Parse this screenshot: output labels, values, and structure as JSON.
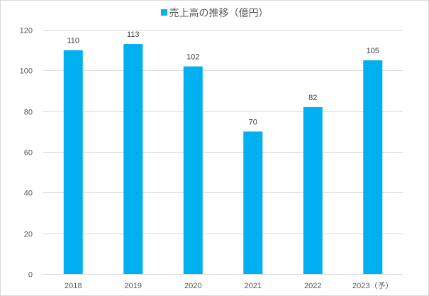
{
  "chart_data": {
    "type": "bar",
    "series": [
      {
        "name": "売上高の推移（億円）",
        "values": [
          110,
          113,
          102,
          70,
          82,
          105
        ]
      }
    ],
    "categories": [
      "2018",
      "2019",
      "2020",
      "2021",
      "2022",
      "2023（予）"
    ],
    "ylim": [
      0,
      120
    ],
    "yticks": [
      0,
      20,
      40,
      60,
      80,
      100,
      120
    ],
    "grid": true,
    "legend": "top",
    "data_labels": [
      "110",
      "113",
      "102",
      "70",
      "82",
      "105"
    ],
    "colors": {
      "bar": "#00b0f0",
      "grid": "#d9d9d9",
      "text": "#595959"
    }
  }
}
